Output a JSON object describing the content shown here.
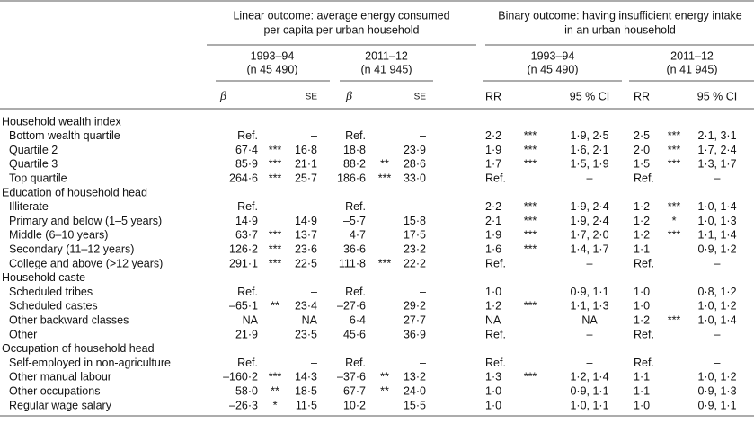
{
  "table": {
    "groups": [
      {
        "title": [
          "Linear outcome: average energy consumed",
          "per capita per urban household"
        ],
        "periods": [
          {
            "period": "1993–94",
            "sample": "(n 45 490)"
          },
          {
            "period": "2011–12",
            "sample": "(n 41 945)"
          }
        ],
        "columns": [
          "β",
          "SE",
          "β",
          "SE"
        ]
      },
      {
        "title": [
          "Binary outcome: having insufficient energy intake",
          "in an urban household"
        ],
        "periods": [
          {
            "period": "1993–94",
            "sample": "(n 45 490)"
          },
          {
            "period": "2011–12",
            "sample": "(n 41 945)"
          }
        ],
        "columns": [
          "RR",
          "95 % CI",
          "RR",
          "95 % CI"
        ]
      }
    ],
    "sections": [
      {
        "title": "Household wealth index",
        "rows": [
          {
            "label": "Bottom wealth quartile",
            "cells": [
              "Ref.",
              null,
              "–",
              "Ref.",
              null,
              "–",
              "2·2",
              "***",
              "1·9, 2·5",
              "2·5",
              "***",
              "2·1, 3·1"
            ]
          },
          {
            "label": "Quartile 2",
            "cells": [
              "67·4",
              "***",
              "16·8",
              "18·8",
              null,
              "23·9",
              "1·9",
              "***",
              "1·6, 2·1",
              "2·0",
              "***",
              "1·7, 2·4"
            ]
          },
          {
            "label": "Quartile 3",
            "cells": [
              "85·9",
              "***",
              "21·1",
              "88·2",
              "**",
              "28·6",
              "1·7",
              "***",
              "1·5, 1·9",
              "1·5",
              "***",
              "1·3, 1·7"
            ]
          },
          {
            "label": "Top quartile",
            "cells": [
              "264·6",
              "***",
              "25·7",
              "186·6",
              "***",
              "33·0",
              "Ref.",
              null,
              "–",
              "Ref.",
              null,
              "–"
            ]
          }
        ]
      },
      {
        "title": "Education of household head",
        "rows": [
          {
            "label": "Illiterate",
            "cells": [
              "Ref.",
              null,
              "–",
              "Ref.",
              null,
              "–",
              "2·2",
              "***",
              "1·9, 2·4",
              "1·2",
              "***",
              "1·0, 1·4"
            ]
          },
          {
            "label": "Primary and below (1–5 years)",
            "cells": [
              "14·9",
              null,
              "14·9",
              "–5·7",
              null,
              "15·8",
              "2·1",
              "***",
              "1·9, 2·4",
              "1·2",
              "*",
              "1·0, 1·3"
            ]
          },
          {
            "label": "Middle (6–10 years)",
            "cells": [
              "63·7",
              "***",
              "13·7",
              "4·7",
              null,
              "17·5",
              "1·9",
              "***",
              "1·7, 2·0",
              "1·2",
              "***",
              "1·1, 1·4"
            ]
          },
          {
            "label": "Secondary (11–12 years)",
            "cells": [
              "126·2",
              "***",
              "23·6",
              "36·6",
              null,
              "23·2",
              "1·6",
              "***",
              "1·4, 1·7",
              "1·1",
              null,
              "0·9, 1·2"
            ]
          },
          {
            "label": "College and above (>12 years)",
            "cells": [
              "291·1",
              "***",
              "22·5",
              "111·8",
              "***",
              "22·2",
              "Ref.",
              null,
              "–",
              "Ref.",
              null,
              "–"
            ]
          }
        ]
      },
      {
        "title": "Household caste",
        "rows": [
          {
            "label": "Scheduled tribes",
            "cells": [
              "Ref.",
              null,
              "–",
              "Ref.",
              null,
              "–",
              "1·0",
              null,
              "0·9, 1·1",
              "1·0",
              null,
              "0·8, 1·2"
            ]
          },
          {
            "label": "Scheduled castes",
            "cells": [
              "–65·1",
              "**",
              "23·4",
              "–27·6",
              null,
              "29·2",
              "1·2",
              "***",
              "1·1, 1·3",
              "1·0",
              null,
              "1·0, 1·2"
            ]
          },
          {
            "label": "Other backward classes",
            "cells": [
              "NA",
              null,
              "NA",
              "6·4",
              null,
              "27·7",
              "NA",
              null,
              "NA",
              "1·2",
              "***",
              "1·0, 1·4"
            ]
          },
          {
            "label": "Other",
            "cells": [
              "21·9",
              null,
              "23·5",
              "45·6",
              null,
              "36·9",
              "Ref.",
              null,
              "–",
              "Ref.",
              null,
              "–"
            ]
          }
        ]
      },
      {
        "title": "Occupation of household head",
        "rows": [
          {
            "label": "Self-employed in non-agriculture",
            "cells": [
              "Ref.",
              null,
              "–",
              "Ref.",
              null,
              "–",
              "Ref.",
              null,
              "–",
              "Ref.",
              null,
              "–"
            ]
          },
          {
            "label": "Other manual labour",
            "cells": [
              "–160·2",
              "***",
              "14·3",
              "–37·6",
              "**",
              "13·2",
              "1·3",
              "***",
              "1·2, 1·4",
              "1·1",
              null,
              "1·0, 1·2"
            ]
          },
          {
            "label": "Other occupations",
            "cells": [
              "58·0",
              "**",
              "18·5",
              "67·7",
              "**",
              "24·0",
              "1·0",
              null,
              "0·9, 1·1",
              "1·1",
              null,
              "0·9, 1·3"
            ]
          },
          {
            "label": "Regular wage salary",
            "cells": [
              "–26·3",
              "*",
              "11·5",
              "10·2",
              null,
              "15·5",
              "1·0",
              null,
              "1·0, 1·1",
              "1·0",
              null,
              "0·9, 1·1"
            ]
          }
        ]
      }
    ]
  }
}
